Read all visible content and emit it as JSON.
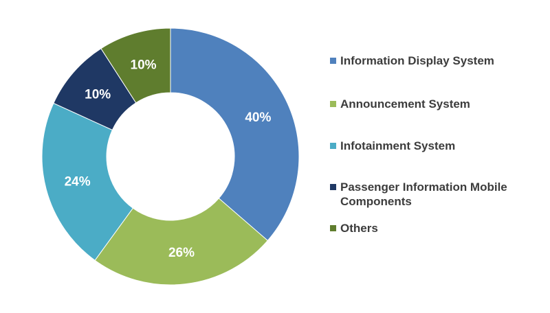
{
  "chart_data": {
    "type": "donut",
    "title": "",
    "slices": [
      {
        "name": "Information Display System",
        "value": 40,
        "label": "40%",
        "color": "#4f81bd"
      },
      {
        "name": "Announcement System",
        "value": 26,
        "label": "26%",
        "color": "#9bbb59"
      },
      {
        "name": "Infotainment System",
        "value": 24,
        "label": "24%",
        "color": "#4bacc6"
      },
      {
        "name": "Passenger Information Mobile Components",
        "value": 10,
        "label": "10%",
        "color": "#1f3864"
      },
      {
        "name": "Others",
        "value": 10,
        "label": "10%",
        "color": "#5f7d2e"
      }
    ],
    "legend_position": "right"
  }
}
